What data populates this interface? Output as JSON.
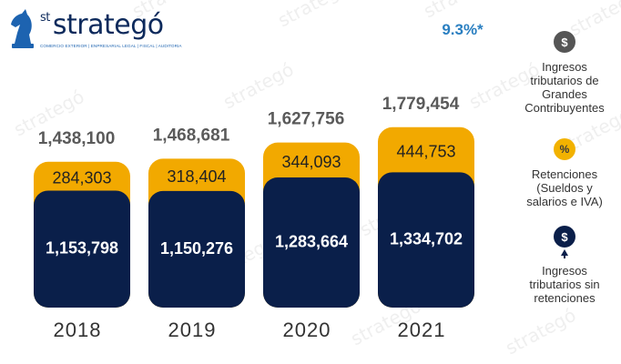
{
  "logo": {
    "brand": "strategó",
    "brand_prefix": "st",
    "tagline": "COMERCIO EXTERIOR | ENPRESARIAL LEGAL | FISCAL | AUDITORIA",
    "icon": "chess-knight-icon"
  },
  "watermark_text": "strategó",
  "chart_data": {
    "type": "bar",
    "stacked": true,
    "categories": [
      "2018",
      "2019",
      "2020",
      "2021"
    ],
    "series": [
      {
        "name": "Ingresos tributarios sin retenciones",
        "values": [
          1153798,
          1150276,
          1283664,
          1334702
        ],
        "value_labels": [
          "1,153,798",
          "1,150,276",
          "1,283,664",
          "1,334,702"
        ],
        "color": "#0a1f4a"
      },
      {
        "name": "Retenciones (Sueldos y salarios e IVA)",
        "values": [
          284303,
          318404,
          344093,
          444753
        ],
        "value_labels": [
          "284,303",
          "318,404",
          "344,093",
          "444,753"
        ],
        "color": "#f2a900"
      }
    ],
    "totals": [
      1438100,
      1468681,
      1627756,
      1779454
    ],
    "total_labels": [
      "1,438,100",
      "1,468,681",
      "1,627,756",
      "1,779,454"
    ],
    "annotation": "9.3%*",
    "annotation_color": "#2a7fc1",
    "title": "",
    "xlabel": "",
    "ylabel": "",
    "grid": false,
    "legend_position": "right"
  },
  "legend": [
    {
      "icon": "dollar-icon",
      "icon_glyph": "$",
      "text_lines": [
        "Ingresos",
        "tributarios de",
        "Grandes",
        "Contribuyentes"
      ]
    },
    {
      "icon": "percent-icon",
      "icon_glyph": "%",
      "text_lines": [
        "Retenciones",
        "(Sueldos y",
        "salarios e IVA)"
      ]
    },
    {
      "icon": "dollar-up-icon",
      "icon_glyph": "$",
      "text_lines": [
        "Ingresos",
        "tributarios sin",
        "retenciones"
      ]
    }
  ]
}
